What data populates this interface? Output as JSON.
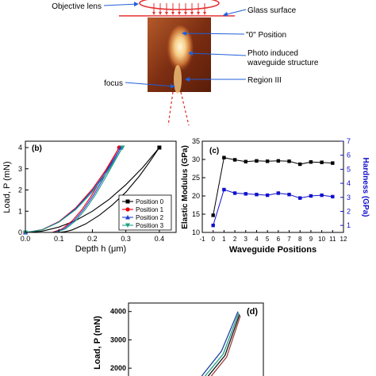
{
  "panel_a": {
    "labels": {
      "objective_lens": "Objective lens",
      "glass_surface": "Glass surface",
      "zero_position": "\"0\" Position",
      "waveguide_line1": "Photo induced",
      "waveguide_line2": "waveguide structure",
      "region": "Region III",
      "focus": "focus"
    }
  },
  "colors": {
    "series": [
      "#000000",
      "#e8000b",
      "#1f3fd8",
      "#20a080"
    ],
    "hardness": "#1010cc",
    "arrow": "#1f5fd8",
    "laser": "#e53030"
  },
  "chart_data": [
    {
      "panel": "(b)",
      "type": "line",
      "xlabel": "Depth h (μm)",
      "ylabel": "Load, P (mN)",
      "xlim": [
        0.0,
        0.45
      ],
      "ylim": [
        0,
        4.3
      ],
      "xticks": [
        "0.0",
        "0.1",
        "0.2",
        "0.3",
        "0.4"
      ],
      "yticks": [
        "0",
        "1",
        "2",
        "3",
        "4"
      ],
      "legend_placement": "lower-right",
      "series": [
        {
          "name": "Position 0",
          "loading": {
            "x": [
              0,
              0.05,
              0.1,
              0.15,
              0.2,
              0.25,
              0.3,
              0.35,
              0.4
            ],
            "y": [
              0,
              0.06,
              0.25,
              0.56,
              1.0,
              1.56,
              2.25,
              3.06,
              4.0
            ]
          },
          "unloading": {
            "x": [
              0.4,
              0.37,
              0.34,
              0.3,
              0.26,
              0.22,
              0.18,
              0.14,
              0.12,
              0.1
            ],
            "y": [
              4.0,
              3.3,
              2.65,
              1.9,
              1.3,
              0.8,
              0.4,
              0.12,
              0.04,
              0
            ]
          }
        },
        {
          "name": "Position 1",
          "loading": {
            "x": [
              0,
              0.05,
              0.1,
              0.15,
              0.2,
              0.24,
              0.28
            ],
            "y": [
              0,
              0.13,
              0.51,
              1.15,
              2.04,
              2.94,
              4.0
            ]
          },
          "unloading": {
            "x": [
              0.28,
              0.26,
              0.23,
              0.2,
              0.17,
              0.14,
              0.11,
              0.08
            ],
            "y": [
              4.0,
              3.45,
              2.6,
              1.8,
              1.1,
              0.55,
              0.17,
              0
            ]
          }
        },
        {
          "name": "Position 2",
          "loading": {
            "x": [
              0,
              0.05,
              0.1,
              0.15,
              0.2,
              0.24,
              0.285
            ],
            "y": [
              0,
              0.12,
              0.49,
              1.11,
              1.97,
              2.84,
              4.0
            ]
          },
          "unloading": {
            "x": [
              0.285,
              0.265,
              0.235,
              0.205,
              0.175,
              0.145,
              0.115,
              0.085
            ],
            "y": [
              4.0,
              3.45,
              2.6,
              1.8,
              1.1,
              0.55,
              0.17,
              0
            ]
          }
        },
        {
          "name": "Position 3",
          "loading": {
            "x": [
              0,
              0.05,
              0.1,
              0.15,
              0.2,
              0.245,
              0.29
            ],
            "y": [
              0,
              0.12,
              0.48,
              1.07,
              1.9,
              2.85,
              4.0
            ]
          },
          "unloading": {
            "x": [
              0.29,
              0.27,
              0.24,
              0.21,
              0.18,
              0.15,
              0.12,
              0.09
            ],
            "y": [
              4.0,
              3.45,
              2.6,
              1.8,
              1.1,
              0.55,
              0.17,
              0
            ]
          }
        }
      ]
    },
    {
      "panel": "(c)",
      "type": "line",
      "xlabel": "Waveguide Positions",
      "ylabel": "Elastic Modulus (GPa)",
      "y2label": "Hardness (GPa)",
      "xlim": [
        -1,
        12
      ],
      "ylim": [
        10,
        35
      ],
      "y2lim": [
        0.5,
        7
      ],
      "xticks": [
        "-1",
        "0",
        "1",
        "2",
        "3",
        "4",
        "5",
        "6",
        "7",
        "8",
        "9",
        "10",
        "11",
        "12"
      ],
      "yticks": [
        "10",
        "15",
        "20",
        "25",
        "30",
        "35"
      ],
      "y2ticks": [
        "1",
        "2",
        "3",
        "4",
        "5",
        "6",
        "7"
      ],
      "x": [
        0,
        1,
        2,
        3,
        4,
        5,
        6,
        7,
        8,
        9,
        10,
        11
      ],
      "series": [
        {
          "name": "Elastic Modulus",
          "axis": "left",
          "values": [
            14.7,
            30.5,
            29.9,
            29.4,
            29.6,
            29.5,
            29.6,
            29.5,
            28.7,
            29.3,
            29.2,
            29.0
          ]
        },
        {
          "name": "Hardness",
          "axis": "right",
          "values": [
            1.0,
            3.55,
            3.3,
            3.25,
            3.2,
            3.15,
            3.3,
            3.2,
            2.95,
            3.1,
            3.15,
            3.05
          ]
        }
      ]
    },
    {
      "panel": "(d)",
      "type": "line",
      "ylabel": "Load, P (mN)",
      "ylim": [
        1500,
        4300
      ],
      "yticks": [
        "2000",
        "3000",
        "4000"
      ],
      "series": [
        {
          "x": [
            0,
            0.6,
            1.0
          ],
          "y": [
            1500,
            2600,
            4000
          ]
        },
        {
          "x": [
            0,
            0.6,
            1.0
          ],
          "y": [
            1500,
            2500,
            3950
          ]
        },
        {
          "x": [
            0,
            0.6,
            1.0
          ],
          "y": [
            1500,
            2450,
            3900
          ]
        },
        {
          "x": [
            0,
            0.6,
            1.0
          ],
          "y": [
            1500,
            2400,
            3850
          ]
        }
      ]
    }
  ]
}
